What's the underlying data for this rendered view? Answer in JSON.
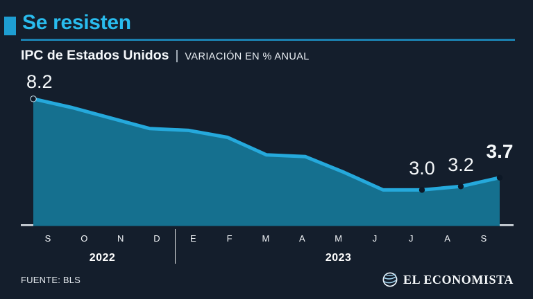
{
  "header": {
    "title": "Se resisten",
    "subtitle_bold": "IPC de Estados Unidos",
    "subtitle_separator": "|",
    "subtitle_detail": "VARIACIÓN EN % ANUAL"
  },
  "chart_data": {
    "type": "area",
    "title": "IPC de Estados Unidos",
    "subtitle": "Variación en % anual",
    "categories": [
      "S",
      "O",
      "N",
      "D",
      "E",
      "F",
      "M",
      "A",
      "M",
      "J",
      "J",
      "A",
      "S"
    ],
    "values": [
      8.2,
      7.7,
      7.1,
      6.5,
      6.4,
      6.0,
      5.0,
      4.9,
      4.0,
      3.0,
      3.0,
      3.2,
      3.7
    ],
    "annotations": [
      {
        "index": 0,
        "label": "8.2",
        "bold": false
      },
      {
        "index": 10,
        "label": "3.0",
        "bold": false
      },
      {
        "index": 11,
        "label": "3.2",
        "bold": false
      },
      {
        "index": 12,
        "label": "3.7",
        "bold": true
      }
    ],
    "year_groups": [
      {
        "label": "2022",
        "from": 0,
        "to": 3
      },
      {
        "label": "2023",
        "from": 4,
        "to": 12
      }
    ],
    "ylim": [
      1.0,
      8.5
    ],
    "grid": false,
    "legend": false,
    "colors": {
      "line": "#25A9DC",
      "fill": "#15708F",
      "dot": "#0D1826",
      "axis": "#DDE3E9",
      "accent": "#29BCEE"
    }
  },
  "footer": {
    "source_label": "FUENTE: BLS",
    "brand": "EL ECONOMISTA"
  }
}
